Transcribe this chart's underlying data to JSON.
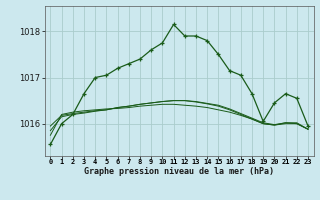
{
  "title": "Graphe pression niveau de la mer (hPa)",
  "bg_color": "#cce8ee",
  "grid_color": "#aacccc",
  "line_color": "#1a5c1a",
  "marker_color": "#1a5c1a",
  "xlim": [
    -0.5,
    23.5
  ],
  "ylim": [
    1015.3,
    1018.55
  ],
  "yticks": [
    1016,
    1017,
    1018
  ],
  "xtick_labels": [
    "0",
    "1",
    "2",
    "3",
    "4",
    "5",
    "6",
    "7",
    "8",
    "9",
    "10",
    "11",
    "12",
    "13",
    "14",
    "15",
    "16",
    "17",
    "18",
    "19",
    "20",
    "21",
    "22",
    "23"
  ],
  "series_main": [
    1015.55,
    1016.0,
    1016.2,
    1016.65,
    1017.0,
    1017.05,
    1017.2,
    1017.3,
    1017.4,
    1017.6,
    1017.75,
    1018.15,
    1017.9,
    1017.9,
    1017.8,
    1017.5,
    1017.15,
    1017.05,
    1016.65,
    1016.05,
    1016.45,
    1016.65,
    1016.55,
    1015.95
  ],
  "series_flat1": [
    1015.75,
    1016.2,
    1016.25,
    1016.28,
    1016.3,
    1016.32,
    1016.33,
    1016.35,
    1016.38,
    1016.4,
    1016.42,
    1016.42,
    1016.4,
    1016.38,
    1016.35,
    1016.3,
    1016.25,
    1016.18,
    1016.1,
    1016.0,
    1015.97,
    1016.0,
    1016.0,
    1015.88
  ],
  "series_flat2": [
    1015.95,
    1016.18,
    1016.22,
    1016.25,
    1016.28,
    1016.3,
    1016.35,
    1016.38,
    1016.42,
    1016.45,
    1016.48,
    1016.5,
    1016.5,
    1016.48,
    1016.44,
    1016.4,
    1016.32,
    1016.22,
    1016.12,
    1016.02,
    1015.98,
    1016.02,
    1016.0,
    1015.88
  ],
  "series_flat3": [
    1015.85,
    1016.15,
    1016.2,
    1016.23,
    1016.27,
    1016.3,
    1016.35,
    1016.38,
    1016.42,
    1016.45,
    1016.48,
    1016.5,
    1016.5,
    1016.47,
    1016.43,
    1016.38,
    1016.3,
    1016.2,
    1016.1,
    1016.0,
    1015.97,
    1016.02,
    1016.02,
    1015.88
  ]
}
